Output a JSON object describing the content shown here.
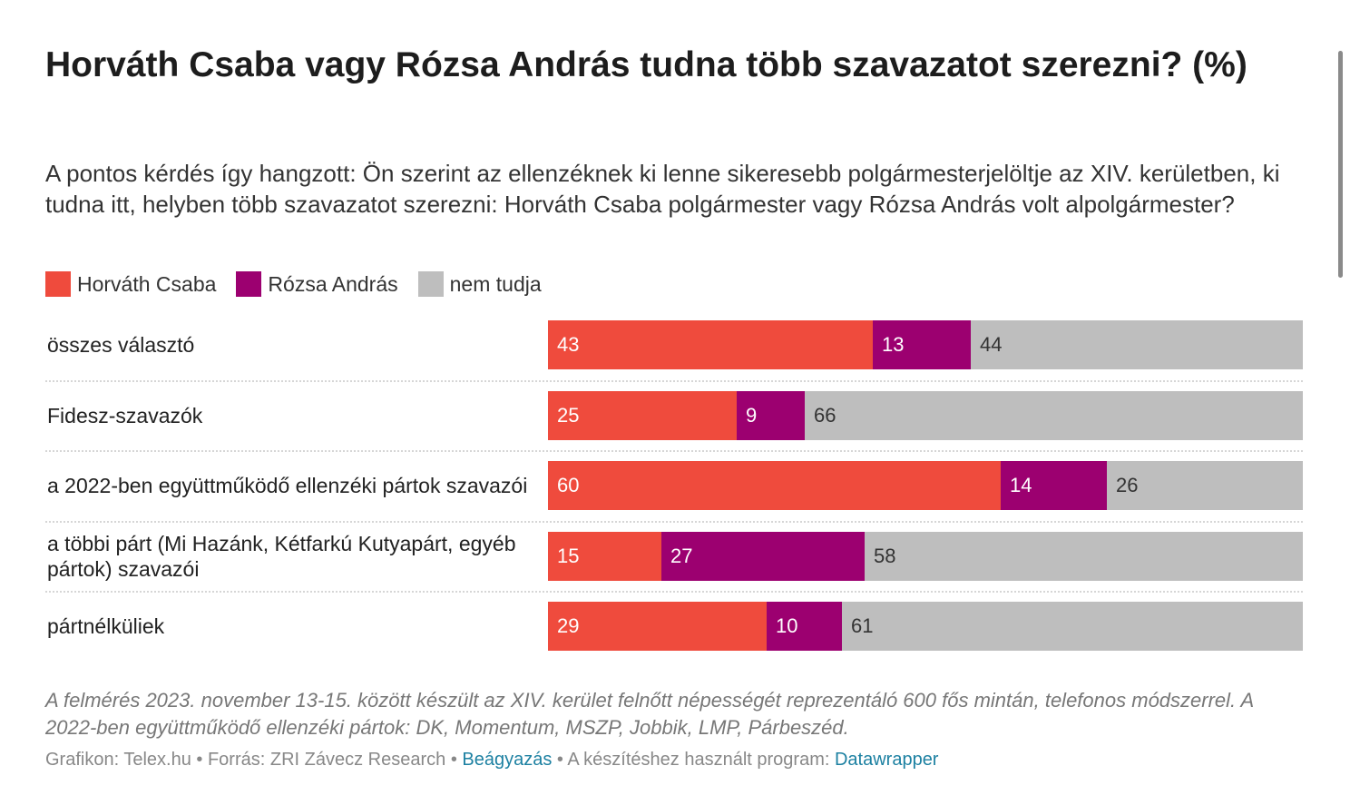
{
  "chart_data": {
    "type": "bar",
    "orientation": "horizontal",
    "stacked": true,
    "title": "Horváth Csaba vagy Rózsa András tudna több szavazatot szerezni? (%)",
    "subtitle": "A pontos kérdés így hangzott: Ön szerint az ellenzéknek ki lenne sikeresebb polgármesterjelöltje az XIV. kerületben, ki tudna itt, helyben több szavazatot szerezni: Horváth Csaba polgármester vagy Rózsa András volt alpolgármester?",
    "legend_position": "top-left",
    "categories": [
      "összes választó",
      "Fidesz-szavazók",
      "a 2022-ben együttműködő ellenzéki pártok szavazói",
      "a többi párt (Mi Hazánk, Kétfarkú Kutyapárt, egyéb pártok) szavazói",
      "pártnélküliek"
    ],
    "series": [
      {
        "name": "Horváth Csaba",
        "color": "#ef4b3d",
        "label_color": "#ffffff",
        "values": [
          43,
          25,
          60,
          15,
          29
        ]
      },
      {
        "name": "Rózsa András",
        "color": "#9c0070",
        "label_color": "#ffffff",
        "values": [
          13,
          9,
          14,
          27,
          10
        ]
      },
      {
        "name": "nem tudja",
        "color": "#bebebe",
        "label_color": "#333333",
        "values": [
          44,
          66,
          26,
          58,
          61
        ]
      }
    ],
    "xlim": [
      0,
      100
    ],
    "grid": false,
    "notes": "A felmérés 2023. november 13-15. között készült az XIV. kerület felnőtt népességét reprezentáló 600 fős mintán, telefonos módszerrel. A 2022-ben együttműködő ellenzéki pártok: DK, Momentum, MSZP, Jobbik, LMP, Párbeszéd."
  },
  "footer": {
    "graphic": "Grafikon: Telex.hu",
    "separator": " • ",
    "source": "Forrás: ZRI Závecz Research",
    "embed_link": "Beágyazás",
    "tool_text": "A készítéshez használt program: ",
    "tool_link": "Datawrapper"
  }
}
